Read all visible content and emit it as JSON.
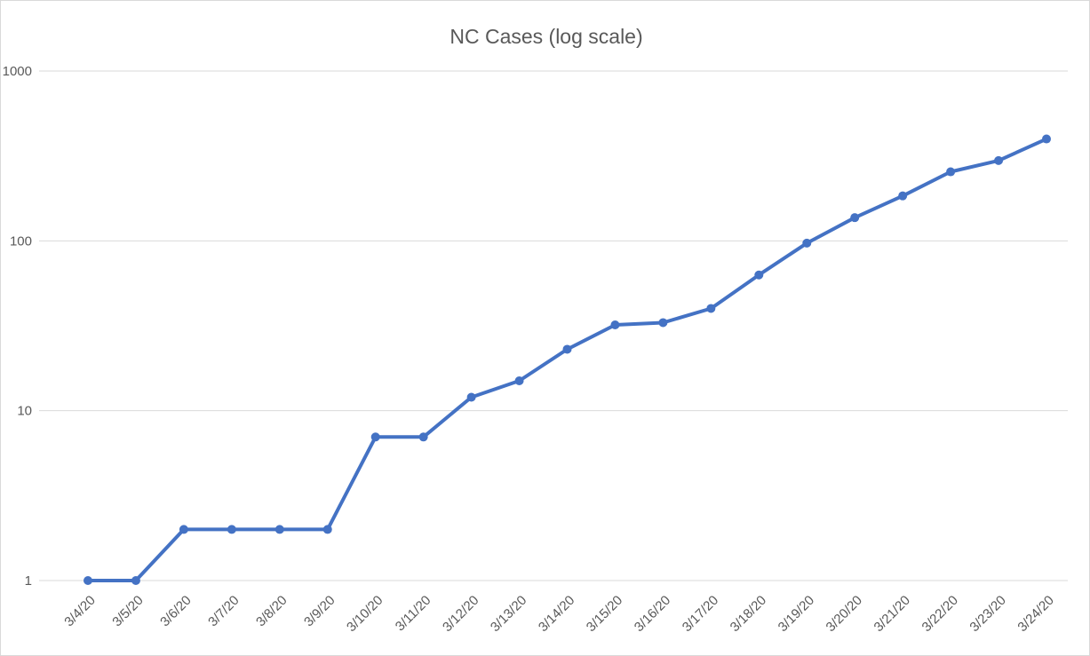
{
  "chart_data": {
    "type": "line",
    "title": "NC Cases (log scale)",
    "xlabel": "",
    "ylabel": "",
    "y_scale": "log",
    "ylim": [
      1,
      1000
    ],
    "y_ticks": [
      1,
      10,
      100,
      1000
    ],
    "y_tick_labels": [
      "1",
      "10",
      "100",
      "1000"
    ],
    "grid": true,
    "legend": "none",
    "categories": [
      "3/4/20",
      "3/5/20",
      "3/6/20",
      "3/7/20",
      "3/8/20",
      "3/9/20",
      "3/10/20",
      "3/11/20",
      "3/12/20",
      "3/13/20",
      "3/14/20",
      "3/15/20",
      "3/16/20",
      "3/17/20",
      "3/18/20",
      "3/19/20",
      "3/20/20",
      "3/21/20",
      "3/22/20",
      "3/23/20",
      "3/24/20"
    ],
    "series": [
      {
        "color": "#4472c4",
        "values": [
          1,
          1,
          2,
          2,
          2,
          2,
          7,
          7,
          12,
          15,
          23,
          32,
          33,
          40,
          63,
          97,
          137,
          184,
          255,
          297,
          398
        ]
      }
    ]
  }
}
